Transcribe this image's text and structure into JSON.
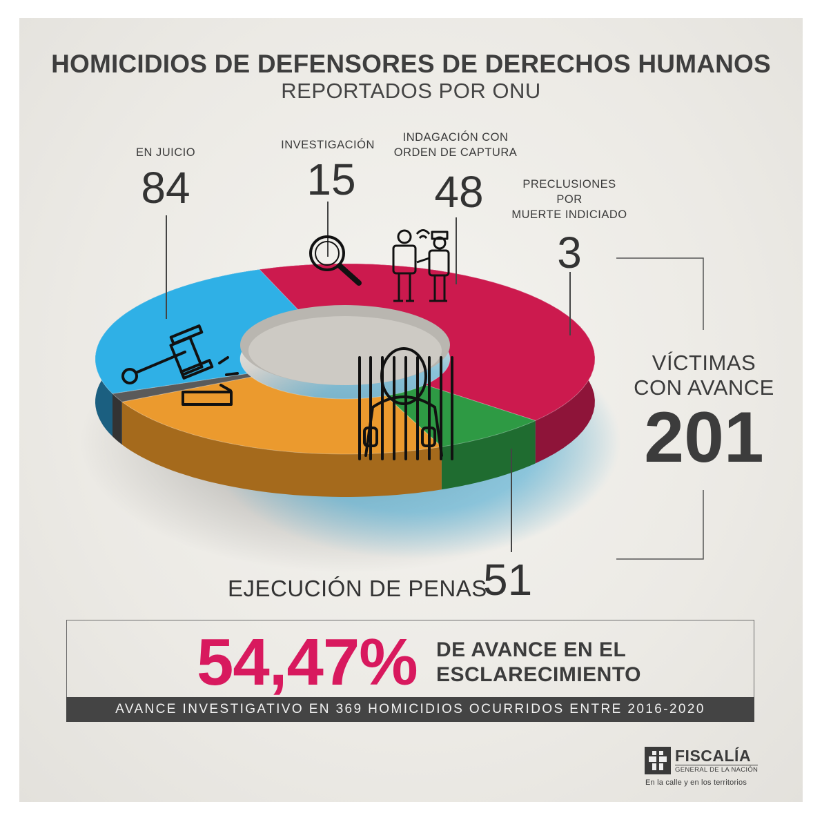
{
  "header": {
    "title": "HOMICIDIOS DE DEFENSORES DE DERECHOS HUMANOS",
    "subtitle": "REPORTADOS POR ONU"
  },
  "chart_data": {
    "type": "pie",
    "style": "3d-donut",
    "categories": [
      "EN JUICIO",
      "INVESTIGACIÓN",
      "INDAGACIÓN CON ORDEN DE CAPTURA",
      "PRECLUSIONES POR MUERTE INDICIADO",
      "EJECUCIÓN DE PENAS"
    ],
    "values": [
      84,
      15,
      48,
      3,
      51
    ],
    "colors": [
      "#cc1a4e",
      "#2e9a44",
      "#eb9a2e",
      "#5a5a5a",
      "#2fb0e6"
    ],
    "labels": {
      "juicio": {
        "label": "EN JUICIO",
        "value": "84"
      },
      "investigacion": {
        "label": "INVESTIGACIÓN",
        "value": "15"
      },
      "indagacion": {
        "label_line1": "INDAGACIÓN CON",
        "label_line2": "ORDEN DE CAPTURA",
        "value": "48"
      },
      "preclusiones": {
        "label_line1": "PRECLUSIONES",
        "label_line2": "POR",
        "label_line3": "MUERTE INDICIADO",
        "value": "3"
      },
      "penas": {
        "label": "EJECUCIÓN DE PENAS",
        "value": "51"
      }
    }
  },
  "total": {
    "label_line1": "VÍCTIMAS",
    "label_line2": "CON AVANCE",
    "value": "201"
  },
  "summary": {
    "percent": "54,47%",
    "text_line1": "DE AVANCE EN EL",
    "text_line2": "ESCLARECIMIENTO",
    "footer": "AVANCE INVESTIGATIVO EN 369 HOMICIDIOS OCURRIDOS ENTRE 2016-2020"
  },
  "logo": {
    "name": "FISCALÍA",
    "sub": "GENERAL DE LA NACIÓN",
    "slogan": "En la calle y en los territorios"
  },
  "icons": [
    "gavel-icon",
    "magnifier-icon",
    "police-arrest-icon",
    "prisoner-icon",
    "fiscalia-logo-icon"
  ]
}
